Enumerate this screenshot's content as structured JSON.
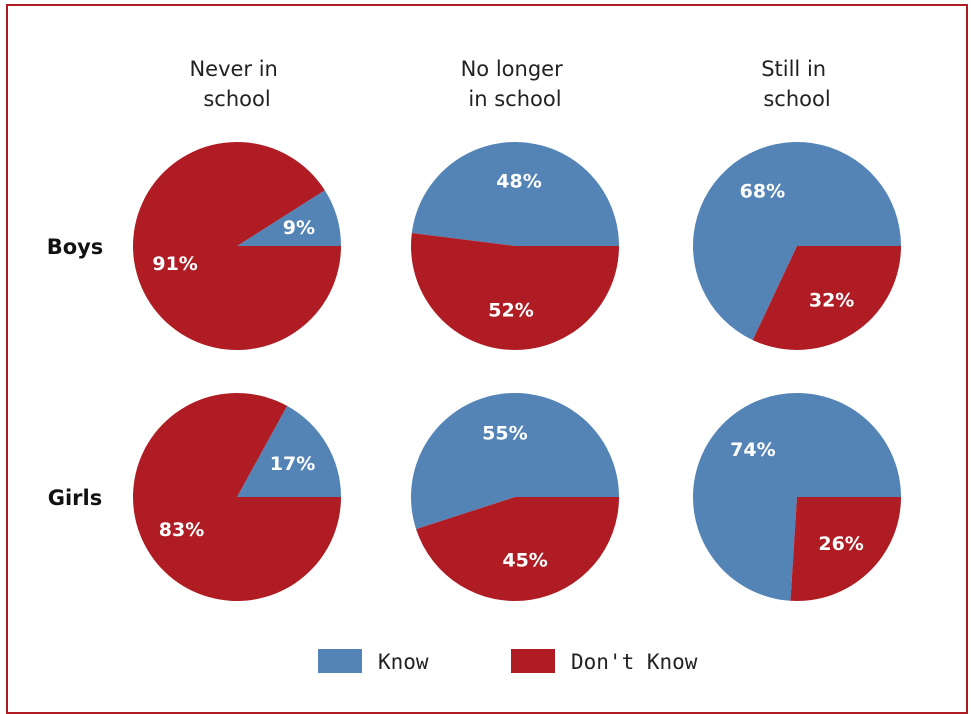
{
  "chart_data": {
    "type": "pie",
    "columns": [
      {
        "title_lines": [
          "Never in",
          "school"
        ]
      },
      {
        "title_lines": [
          "No longer",
          "in school"
        ]
      },
      {
        "title_lines": [
          "Still in",
          "school"
        ]
      }
    ],
    "rows": [
      "Boys",
      "Girls"
    ],
    "series": [
      {
        "name": "Know",
        "color": "#5483b5"
      },
      {
        "name": "Don't Know",
        "color": "#b01c24"
      }
    ],
    "pies": [
      {
        "row": "Boys",
        "column": 0,
        "values": [
          9,
          91
        ],
        "labels": [
          "9%",
          "91%"
        ]
      },
      {
        "row": "Boys",
        "column": 1,
        "values": [
          48,
          52
        ],
        "labels": [
          "48%",
          "52%"
        ]
      },
      {
        "row": "Boys",
        "column": 2,
        "values": [
          68,
          32
        ],
        "labels": [
          "68%",
          "32%"
        ]
      },
      {
        "row": "Girls",
        "column": 0,
        "values": [
          17,
          83
        ],
        "labels": [
          "17%",
          "83%"
        ]
      },
      {
        "row": "Girls",
        "column": 1,
        "values": [
          55,
          45
        ],
        "labels": [
          "55%",
          "45%"
        ]
      },
      {
        "row": "Girls",
        "column": 2,
        "values": [
          74,
          26
        ],
        "labels": [
          "74%",
          "26%"
        ]
      }
    ],
    "legend": {
      "position": "bottom",
      "items": [
        "Know",
        "Don't Know"
      ]
    }
  },
  "colors": {
    "know": "#5483b5",
    "dont_know": "#b01c24",
    "frame": "#b01c24"
  }
}
